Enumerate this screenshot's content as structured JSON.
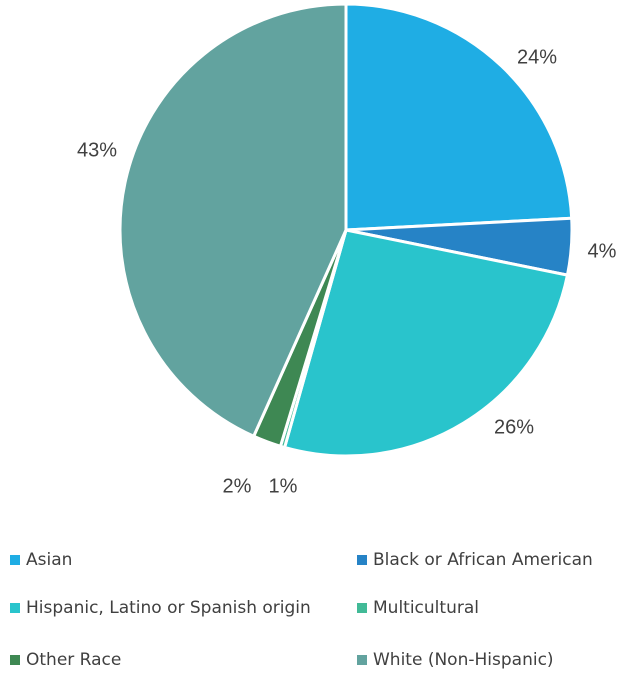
{
  "chart_data": {
    "type": "pie",
    "title": "",
    "legend_position": "bottom",
    "slices": [
      {
        "name": "Asian",
        "value": 24,
        "label": "24%",
        "color": "#1FADE4"
      },
      {
        "name": "Black or African American",
        "value": 4,
        "label": "4%",
        "color": "#2683C6"
      },
      {
        "name": "Hispanic, Latino or Spanish origin",
        "value": 26,
        "label": "26%",
        "color": "#29C4CC"
      },
      {
        "name": "Multicultural",
        "value": 0.3,
        "label": "",
        "color": "#42BA97"
      },
      {
        "name": "Other Race",
        "value": 2,
        "label": "2%",
        "color": "#3E8853"
      },
      {
        "name": "White (Non-Hispanic)",
        "value": 43,
        "label": "43%",
        "color": "#62A39F"
      }
    ],
    "extra_labels": [
      "1%"
    ]
  }
}
